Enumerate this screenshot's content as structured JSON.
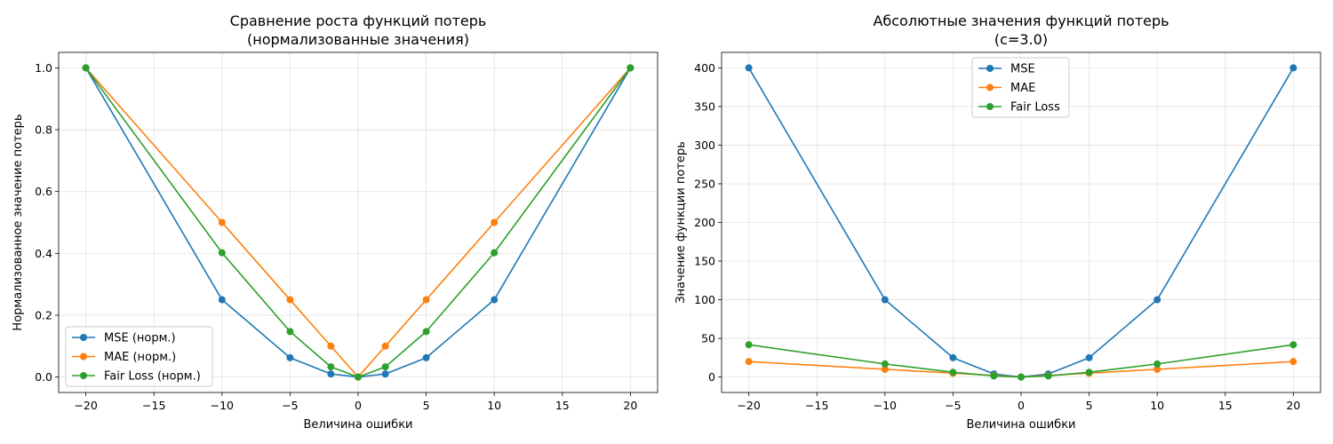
{
  "chart_data": [
    {
      "type": "line",
      "title": "Сравнение роста функций потерь",
      "subtitle": "(нормализованные значения)",
      "xlabel": "Величина ошибки",
      "ylabel": "Нормализованное значение потерь",
      "xlim": [
        -22,
        22
      ],
      "ylim": [
        -0.05,
        1.05
      ],
      "xticks": [
        -20,
        -15,
        -10,
        -5,
        0,
        5,
        10,
        15,
        20
      ],
      "xtick_labels": [
        "−20",
        "−15",
        "−10",
        "−5",
        "0",
        "5",
        "10",
        "15",
        "20"
      ],
      "yticks": [
        0,
        0.2,
        0.4,
        0.6,
        0.8,
        1.0
      ],
      "ytick_labels": [
        "0.0",
        "0.2",
        "0.4",
        "0.6",
        "0.8",
        "1.0"
      ],
      "grid": true,
      "legend_position": "lower-left",
      "x": [
        -20,
        -10,
        -5,
        -2,
        0,
        2,
        5,
        10,
        20
      ],
      "series": [
        {
          "name": "MSE (норм.)",
          "color": "#1f77b4",
          "values": [
            1.0,
            0.25,
            0.0625,
            0.01,
            0.0,
            0.01,
            0.0625,
            0.25,
            1.0
          ]
        },
        {
          "name": "MAE (норм.)",
          "color": "#ff7f0e",
          "values": [
            1.0,
            0.5,
            0.25,
            0.1,
            0.0,
            0.1,
            0.25,
            0.5,
            1.0
          ]
        },
        {
          "name": "Fair Loss (норм.)",
          "color": "#2ca02c",
          "values": [
            1.0,
            0.402,
            0.147,
            0.033,
            0.0,
            0.033,
            0.147,
            0.402,
            1.0
          ]
        }
      ]
    },
    {
      "type": "line",
      "title": "Абсолютные значения функций потерь",
      "subtitle": "(c=3.0)",
      "xlabel": "Величина ошибки",
      "ylabel": "Значение функции потерь",
      "xlim": [
        -22,
        22
      ],
      "ylim": [
        -20,
        420
      ],
      "xticks": [
        -20,
        -15,
        -10,
        -5,
        0,
        5,
        10,
        15,
        20
      ],
      "xtick_labels": [
        "−20",
        "−15",
        "−10",
        "−5",
        "0",
        "5",
        "10",
        "15",
        "20"
      ],
      "yticks": [
        0,
        50,
        100,
        150,
        200,
        250,
        300,
        350,
        400
      ],
      "ytick_labels": [
        "0",
        "50",
        "100",
        "150",
        "200",
        "250",
        "300",
        "350",
        "400"
      ],
      "grid": true,
      "legend_position": "upper-center",
      "x": [
        -20,
        -10,
        -5,
        -2,
        0,
        2,
        5,
        10,
        20
      ],
      "series": [
        {
          "name": "MSE",
          "color": "#1f77b4",
          "values": [
            400,
            100,
            25,
            4,
            0,
            4,
            25,
            100,
            400
          ]
        },
        {
          "name": "MAE",
          "color": "#ff7f0e",
          "values": [
            20,
            10,
            5,
            2,
            0,
            2,
            5,
            10,
            20
          ]
        },
        {
          "name": "Fair Loss",
          "color": "#2ca02c",
          "values": [
            41.8,
            16.9,
            6.2,
            1.4,
            0,
            1.4,
            6.2,
            16.9,
            41.8
          ]
        }
      ]
    }
  ]
}
